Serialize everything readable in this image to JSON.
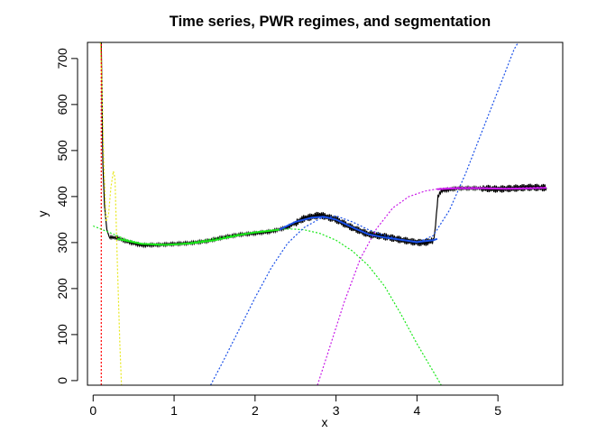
{
  "chart_data": {
    "type": "line",
    "title": "Time series, PWR regimes, and segmentation",
    "xlabel": "x",
    "ylabel": "y",
    "xlim": [
      -0.07,
      5.8
    ],
    "ylim": [
      -10,
      735
    ],
    "xticks": [
      0,
      1,
      2,
      3,
      4,
      5
    ],
    "yticks": [
      0,
      100,
      200,
      300,
      400,
      500,
      600,
      700
    ],
    "legend": "none",
    "grid": false,
    "series": [
      {
        "color": "#000000",
        "style": "solid",
        "points": [
          [
            0.1,
            735
          ],
          [
            0.11,
            600
          ],
          [
            0.12,
            470
          ],
          [
            0.14,
            380
          ],
          [
            0.17,
            328
          ],
          [
            0.2,
            312
          ],
          [
            0.3,
            310
          ],
          [
            0.4,
            303
          ],
          [
            0.5,
            298
          ],
          [
            0.6,
            294
          ],
          [
            0.8,
            295
          ],
          [
            1.0,
            297
          ],
          [
            1.2,
            299
          ],
          [
            1.4,
            303
          ],
          [
            1.6,
            311
          ],
          [
            1.8,
            317
          ],
          [
            2.0,
            320
          ],
          [
            2.2,
            324
          ],
          [
            2.4,
            333
          ],
          [
            2.6,
            352
          ],
          [
            2.8,
            360
          ],
          [
            3.0,
            350
          ],
          [
            3.2,
            332
          ],
          [
            3.4,
            318
          ],
          [
            3.6,
            313
          ],
          [
            3.8,
            306
          ],
          [
            4.0,
            300
          ],
          [
            4.1,
            300
          ],
          [
            4.2,
            305
          ],
          [
            4.22,
            320
          ],
          [
            4.24,
            360
          ],
          [
            4.26,
            400
          ],
          [
            4.3,
            412
          ],
          [
            4.5,
            418
          ],
          [
            4.8,
            418
          ],
          [
            5.0,
            416
          ],
          [
            5.2,
            418
          ],
          [
            5.4,
            420
          ],
          [
            5.6,
            419
          ]
        ]
      },
      {
        "color": "#FF0000",
        "style": "dotted",
        "points": [
          [
            0.1,
            -10
          ],
          [
            0.1,
            735
          ]
        ]
      },
      {
        "color": "#E8E81A",
        "style": "dotted",
        "points": [
          [
            0.09,
            735
          ],
          [
            0.11,
            630
          ],
          [
            0.13,
            480
          ],
          [
            0.16,
            345
          ],
          [
            0.19,
            360
          ],
          [
            0.22,
            420
          ],
          [
            0.25,
            455
          ],
          [
            0.27,
            440
          ],
          [
            0.3,
            250
          ],
          [
            0.33,
            80
          ],
          [
            0.35,
            -10
          ]
        ]
      },
      {
        "color": "#1AE81A",
        "style": "dotted",
        "points": [
          [
            0.0,
            336
          ],
          [
            0.2,
            322
          ],
          [
            0.4,
            307
          ],
          [
            0.6,
            298
          ],
          [
            0.8,
            294
          ],
          [
            1.0,
            296
          ],
          [
            1.2,
            300
          ],
          [
            1.4,
            306
          ],
          [
            1.6,
            312
          ],
          [
            1.8,
            318
          ],
          [
            2.0,
            323
          ],
          [
            2.2,
            327
          ],
          [
            2.4,
            330
          ],
          [
            2.6,
            328
          ],
          [
            2.8,
            320
          ],
          [
            3.0,
            305
          ],
          [
            3.2,
            282
          ],
          [
            3.4,
            250
          ],
          [
            3.6,
            205
          ],
          [
            3.8,
            145
          ],
          [
            4.0,
            80
          ],
          [
            4.2,
            20
          ],
          [
            4.3,
            -10
          ]
        ]
      },
      {
        "color": "#1A50E8",
        "style": "dotted",
        "points": [
          [
            1.45,
            -10
          ],
          [
            1.6,
            40
          ],
          [
            1.8,
            110
          ],
          [
            2.0,
            180
          ],
          [
            2.2,
            245
          ],
          [
            2.4,
            298
          ],
          [
            2.6,
            332
          ],
          [
            2.8,
            352
          ],
          [
            3.0,
            358
          ],
          [
            3.2,
            345
          ],
          [
            3.4,
            328
          ],
          [
            3.6,
            316
          ],
          [
            3.8,
            306
          ],
          [
            4.0,
            300
          ],
          [
            4.2,
            315
          ],
          [
            4.4,
            370
          ],
          [
            4.6,
            450
          ],
          [
            4.8,
            540
          ],
          [
            5.0,
            630
          ],
          [
            5.2,
            720
          ],
          [
            5.25,
            735
          ]
        ]
      },
      {
        "color": "#C81AE8",
        "style": "dotted",
        "points": [
          [
            2.77,
            -10
          ],
          [
            2.9,
            60
          ],
          [
            3.1,
            170
          ],
          [
            3.3,
            265
          ],
          [
            3.5,
            330
          ],
          [
            3.7,
            375
          ],
          [
            3.9,
            400
          ],
          [
            4.1,
            412
          ],
          [
            4.3,
            418
          ],
          [
            4.5,
            420
          ],
          [
            4.7,
            420
          ],
          [
            4.9,
            419
          ],
          [
            5.1,
            418
          ],
          [
            5.3,
            419
          ],
          [
            5.5,
            420
          ],
          [
            5.6,
            420
          ]
        ]
      },
      {
        "color": "#1A50E8",
        "style": "solid",
        "points": [
          [
            2.3,
            328
          ],
          [
            2.5,
            345
          ],
          [
            2.7,
            354
          ],
          [
            2.85,
            356
          ],
          [
            3.0,
            350
          ],
          [
            3.2,
            333
          ],
          [
            3.4,
            318
          ],
          [
            3.6,
            311
          ],
          [
            3.8,
            306
          ],
          [
            4.0,
            301
          ],
          [
            4.2,
            305
          ],
          [
            4.25,
            308
          ]
        ]
      },
      {
        "color": "#1AE81A",
        "style": "solid",
        "points": [
          [
            0.3,
            308
          ],
          [
            0.6,
            297
          ],
          [
            0.9,
            295
          ],
          [
            1.2,
            298
          ],
          [
            1.5,
            305
          ],
          [
            1.8,
            316
          ],
          [
            2.0,
            322
          ],
          [
            2.3,
            328
          ]
        ]
      },
      {
        "color": "#C81AE8",
        "style": "solid",
        "points": [
          [
            4.25,
            416
          ],
          [
            4.5,
            418
          ],
          [
            4.8,
            418
          ],
          [
            5.1,
            417
          ],
          [
            5.4,
            418
          ],
          [
            5.6,
            419
          ]
        ]
      }
    ]
  }
}
